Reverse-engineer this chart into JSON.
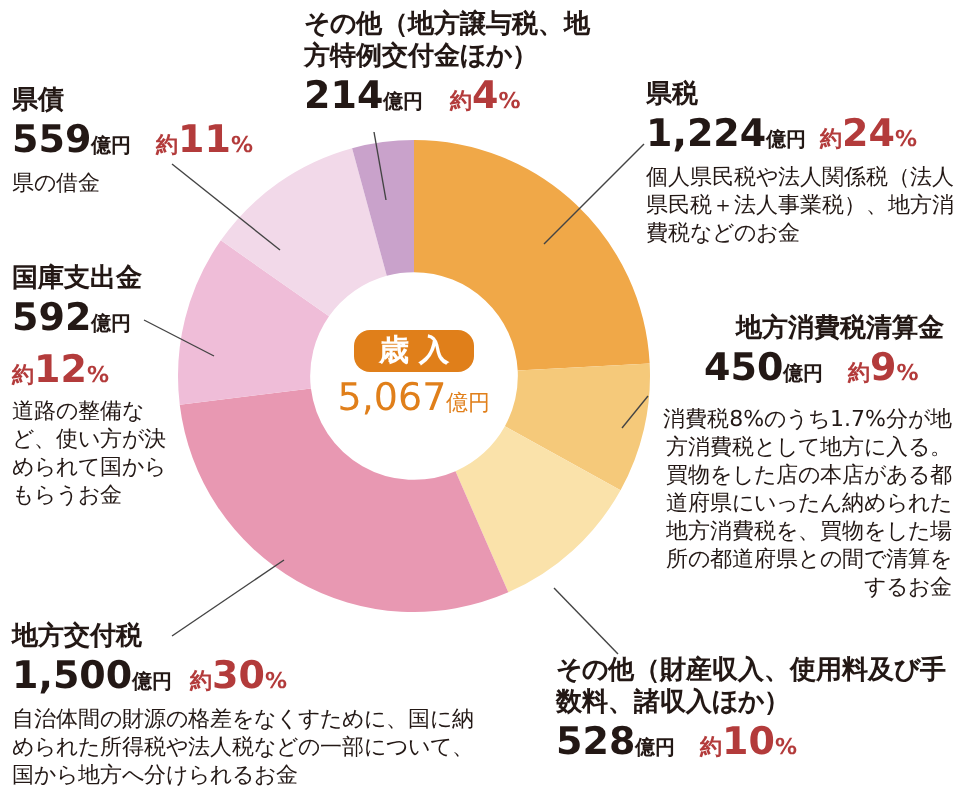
{
  "chart_data": {
    "type": "donut",
    "title": "歳 入",
    "subtitle": "5,067億円",
    "categories": [
      "県税",
      "地方消費税清算金",
      "その他（財産収入、使用料及び手数料、諸収入ほか）",
      "地方交付税",
      "国庫支出金",
      "県債",
      "その他（地方譲与税、地方特例交付金ほか）"
    ],
    "values": [
      1224,
      450,
      528,
      1500,
      592,
      559,
      214
    ],
    "colors": [
      "#f0a848",
      "#f5c97a",
      "#fae2aa",
      "#e898b2",
      "#efbdd8",
      "#f2d9e9",
      "#c9a2cb"
    ],
    "value_labels": [
      "1,224億円",
      "450億円",
      "528億円",
      "1,500億円",
      "592億円",
      "559億円",
      "214億円"
    ],
    "annotations": [
      "約24%",
      "約9%",
      "約10%",
      "約30%",
      "約12%",
      "約11%",
      "約4%",
      "個人県民税や法人関係税（法人県民税＋法人事業税）、地方消費税などのお金",
      "消費税8%のうち1.7%分が地方消費税として地方に入る。買物をした店の本店がある都道府県にいったん納められた地方消費税を、買物をした場所の都道府県との間で清算をするお金",
      "自治体間の財源の格差をなくすために、国に納められた所得税や法人税などの一部について、国から地方へ分けられるお金",
      "道路の整備など、使い方が決められて国からもらうお金",
      "県の借金"
    ],
    "legend": false
  }
}
